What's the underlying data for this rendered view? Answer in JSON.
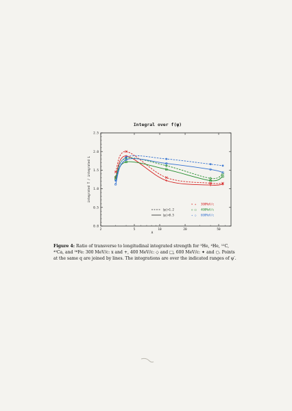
{
  "colors": {
    "red": "#d42020",
    "green": "#1e8a2a",
    "blue": "#2f6fd0",
    "black": "#111111"
  },
  "chart_data": {
    "type": "line",
    "title": "Integral over f(ψ)",
    "xlabel": "A",
    "ylabel": "integrated T / integrated L",
    "x_scale": "log",
    "xlim": [
      2,
      70
    ],
    "ylim": [
      0.0,
      2.5
    ],
    "x_ticks": [
      2,
      5,
      10,
      20,
      50
    ],
    "x_tick_labels": [
      "2",
      "5",
      "10",
      "20",
      "50"
    ],
    "y_ticks": [
      0.0,
      0.5,
      1.0,
      1.5,
      2.0,
      2.5
    ],
    "y_tick_labels": [
      "0.0",
      "0.5",
      "1.0",
      "1.5",
      "2.0",
      "2.5"
    ],
    "series": [
      {
        "name": "300MeV/c |ψ|<1.2",
        "color_key": "red",
        "dash": "dashed",
        "x": [
          3,
          4,
          12,
          40,
          56
        ],
        "y": [
          1.45,
          2.0,
          1.3,
          1.15,
          1.15
        ]
      },
      {
        "name": "300MeV/c |ψ|<0.5",
        "color_key": "red",
        "dash": "solid",
        "x": [
          3,
          4,
          12,
          40,
          56
        ],
        "y": [
          1.3,
          1.88,
          1.22,
          1.1,
          1.12
        ]
      },
      {
        "name": "400MeV/c |ψ|<1.2",
        "color_key": "green",
        "dash": "dashed",
        "x": [
          3,
          4,
          12,
          40,
          56
        ],
        "y": [
          1.32,
          1.82,
          1.62,
          1.28,
          1.4
        ]
      },
      {
        "name": "400MeV/c |ψ|<0.5",
        "color_key": "green",
        "dash": "solid",
        "x": [
          3,
          4,
          12,
          40,
          56
        ],
        "y": [
          1.26,
          1.72,
          1.52,
          1.22,
          1.33
        ]
      },
      {
        "name": "600MeV/c |ψ|<1.2",
        "color_key": "blue",
        "dash": "dashed",
        "x": [
          3,
          4,
          12,
          40,
          56
        ],
        "y": [
          1.22,
          1.85,
          1.8,
          1.66,
          1.62
        ]
      },
      {
        "name": "600MeV/c |ψ|<0.5",
        "color_key": "blue",
        "dash": "solid",
        "x": [
          3,
          4,
          12,
          40,
          56
        ],
        "y": [
          1.12,
          1.78,
          1.68,
          1.52,
          1.44
        ]
      }
    ],
    "legend": {
      "position": "lower-right",
      "line_styles": [
        {
          "label": "|ψ|<1.2",
          "dash": "dashed"
        },
        {
          "label": "|ψ|<0.5",
          "dash": "solid"
        }
      ],
      "momenta": [
        {
          "label": "300MeV/c",
          "color_key": "red",
          "markers": "× +"
        },
        {
          "label": "400MeV/c",
          "color_key": "green",
          "markers": "◇ □"
        },
        {
          "label": "600MeV/c",
          "color_key": "blue",
          "markers": "✦ ○"
        }
      ]
    }
  },
  "caption": {
    "label": "Figure 4:",
    "text": "Ratio of transverse to longitudinal integrated strength for ³He, ⁴He, ¹²C, ⁴⁰Ca, and ⁵⁶Fe: 300 MeV/c: x and +, 400 MeV/c: ◇ and □, 600 MeV/c: ✦ and ○. Points at the same q are joined by lines. The integrations are over the indicated ranges of ψ′."
  }
}
